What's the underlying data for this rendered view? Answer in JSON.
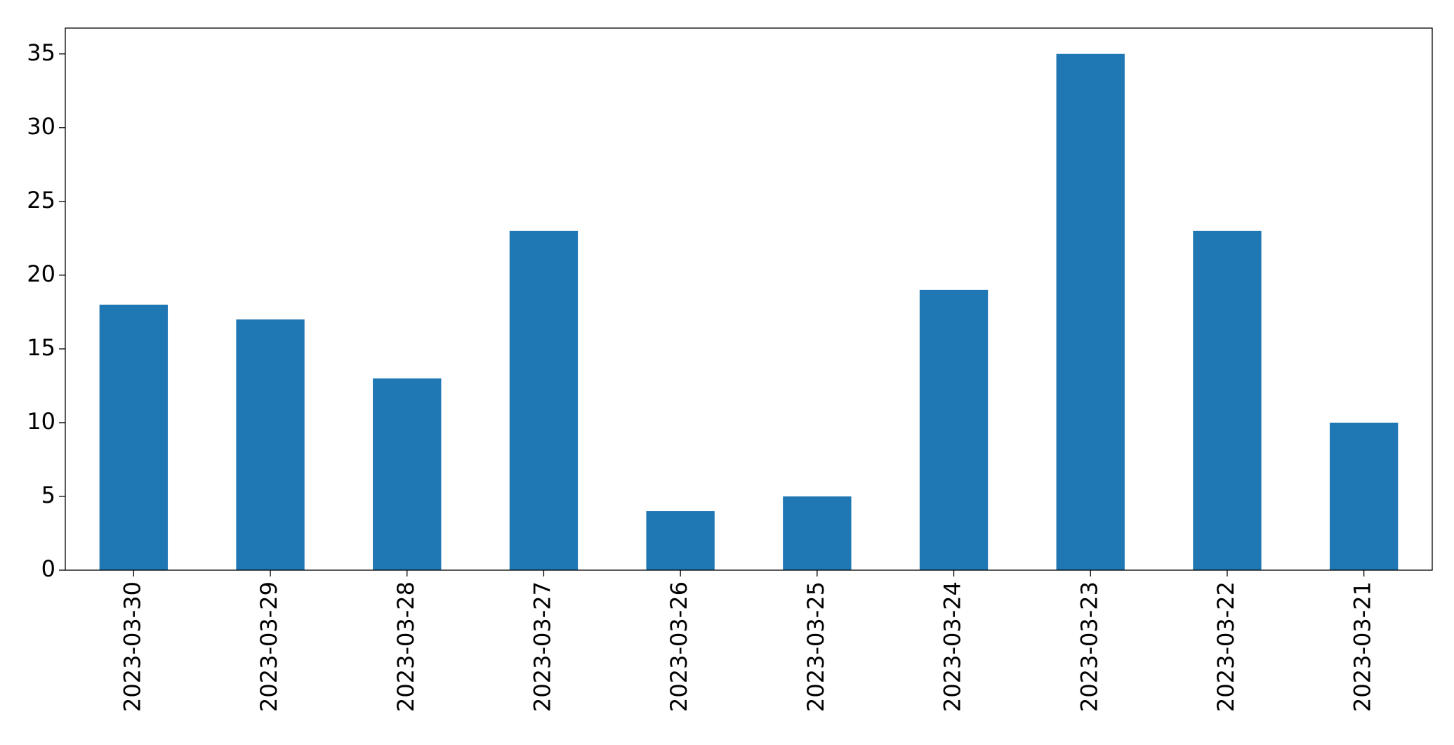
{
  "chart_data": {
    "type": "bar",
    "categories": [
      "2023-03-30",
      "2023-03-29",
      "2023-03-28",
      "2023-03-27",
      "2023-03-26",
      "2023-03-25",
      "2023-03-24",
      "2023-03-23",
      "2023-03-22",
      "2023-03-21"
    ],
    "values": [
      18,
      17,
      13,
      23,
      4,
      5,
      19,
      35,
      23,
      10
    ],
    "color": "#1f77b4",
    "ylim": [
      0,
      36.75
    ],
    "yticks": [
      0,
      5,
      10,
      15,
      20,
      25,
      30,
      35
    ],
    "grid": false
  }
}
